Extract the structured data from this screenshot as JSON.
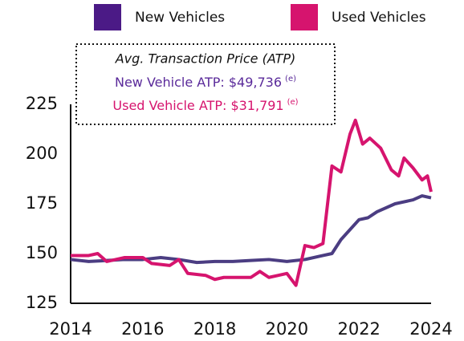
{
  "chart_data": {
    "type": "line",
    "annotation": {
      "title": "Avg. Transaction Price (ATP)",
      "lines": [
        {
          "text": "New Vehicle ATP: $49,736",
          "note": "(e)",
          "color": "#5a2a9a"
        },
        {
          "text": "Used Vehicle ATP: $31,791",
          "note": "(e)",
          "color": "#d6146e"
        }
      ]
    },
    "series": [
      {
        "name": "New Vehicles",
        "color": "#4b3d82",
        "legend_color": "#4b1a86",
        "x": [
          2014,
          2014.5,
          2015,
          2015.5,
          2016,
          2016.5,
          2017,
          2017.5,
          2018,
          2018.5,
          2019,
          2019.5,
          2020,
          2020.5,
          2021,
          2021.25,
          2021.5,
          2022,
          2022.25,
          2022.5,
          2023,
          2023.5,
          2023.75,
          2024
        ],
        "values": [
          147,
          146,
          146.5,
          147,
          147,
          148,
          147,
          145.5,
          146,
          146,
          146.5,
          147,
          146,
          147,
          149,
          150,
          157,
          167,
          168,
          171,
          175,
          177,
          179,
          178
        ]
      },
      {
        "name": "Used Vehicles",
        "color": "#d6146e",
        "legend_color": "#d6146e",
        "x": [
          2014,
          2014.5,
          2014.75,
          2015,
          2015.5,
          2016,
          2016.25,
          2016.75,
          2017,
          2017.25,
          2017.75,
          2018,
          2018.25,
          2018.75,
          2019,
          2019.25,
          2019.5,
          2019.75,
          2020,
          2020.25,
          2020.5,
          2020.75,
          2021,
          2021.25,
          2021.5,
          2021.75,
          2021.9,
          2022.1,
          2022.3,
          2022.6,
          2022.9,
          2023.1,
          2023.25,
          2023.5,
          2023.75,
          2023.9,
          2024
        ],
        "values": [
          149,
          149,
          150,
          146,
          148,
          148,
          145,
          144,
          147,
          140,
          139,
          137,
          138,
          138,
          138,
          141,
          138,
          139,
          140,
          134,
          154,
          153,
          155,
          194,
          191,
          210,
          217,
          205,
          208,
          203,
          192,
          189,
          198,
          193,
          187,
          189,
          181
        ]
      }
    ],
    "xlim": [
      2014,
      2024
    ],
    "xticks": [
      2014,
      2016,
      2018,
      2020,
      2022,
      2024
    ],
    "ylim": [
      125,
      225
    ],
    "yticks": [
      125,
      150,
      175,
      200,
      225
    ]
  }
}
